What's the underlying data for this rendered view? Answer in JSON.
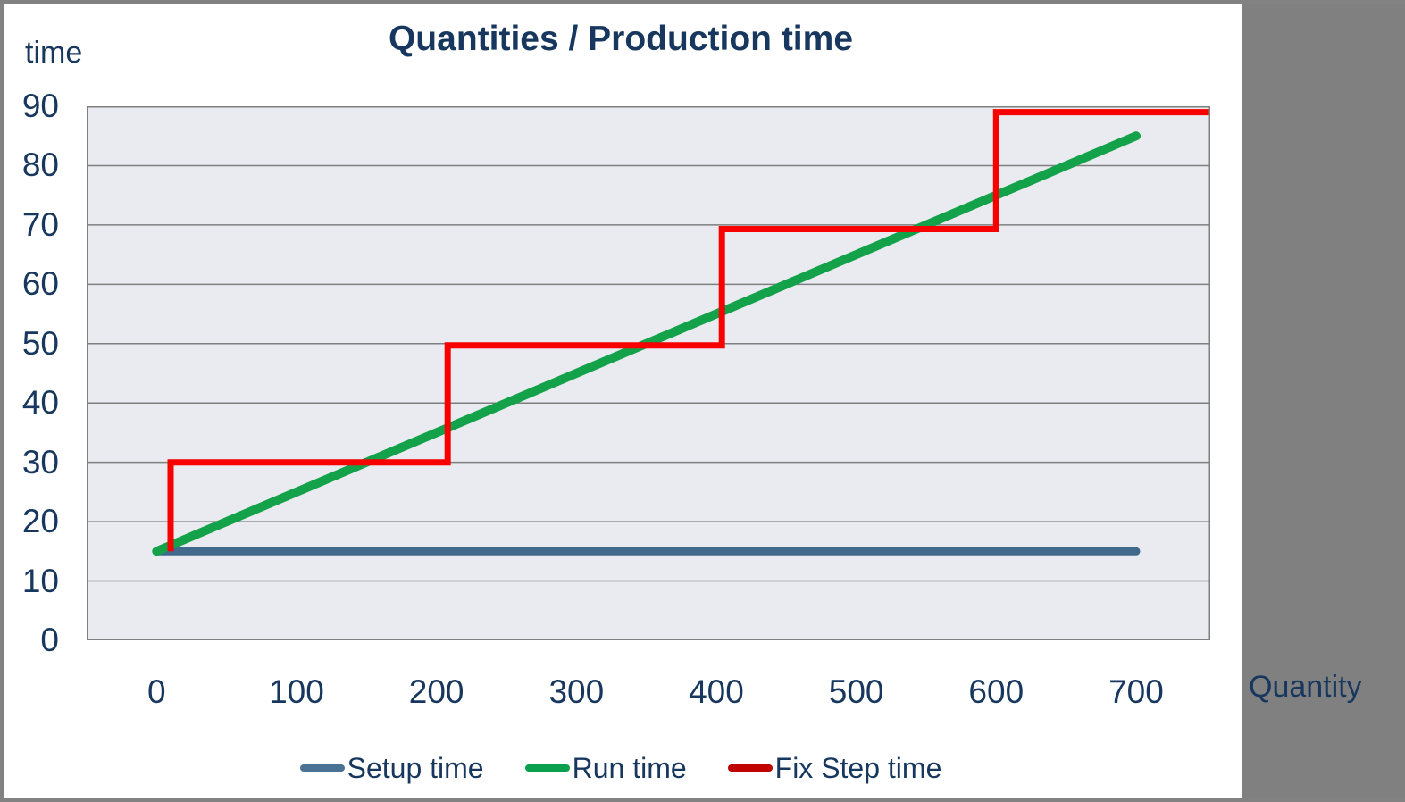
{
  "title": "Quantities / Production time",
  "y_axis_title": "time",
  "x_axis_title": "Quantity",
  "colors": {
    "text_navy": "#17375E",
    "plot_background": "#E9EBF1",
    "gridline": "#7F7F7F",
    "plot_border": "#7F7F7F",
    "frame_gray": "#808080",
    "setup_line": "#41698C",
    "run_line": "#13A24A",
    "fix_step_line": "#F80000"
  },
  "legend": [
    {
      "label": "Setup time",
      "marker_color": "#4A7294"
    },
    {
      "label": "Run time",
      "marker_color": "#0AA04C"
    },
    {
      "label": "Fix Step time",
      "marker_color": "#C00000"
    }
  ],
  "chart_data": {
    "type": "line",
    "title": "Quantities / Production time",
    "xlabel": "Quantity",
    "ylabel": "time",
    "xlim": [
      -50,
      753
    ],
    "ylim": [
      0,
      90
    ],
    "x_ticks": [
      0,
      100,
      200,
      300,
      400,
      500,
      600,
      700
    ],
    "y_ticks": [
      0,
      10,
      20,
      30,
      40,
      50,
      60,
      70,
      80,
      90
    ],
    "grid": "horizontal",
    "legend_position": "bottom",
    "series": [
      {
        "name": "Setup time",
        "color": "#41698C",
        "points": [
          [
            0,
            15
          ],
          [
            700,
            15
          ]
        ]
      },
      {
        "name": "Run time",
        "color": "#13A24A",
        "points": [
          [
            0,
            15
          ],
          [
            700,
            85
          ]
        ]
      },
      {
        "name": "Fix Step time",
        "color": "#F80000",
        "points": [
          [
            10,
            15
          ],
          [
            10,
            30
          ],
          [
            208,
            30
          ],
          [
            208,
            49.7
          ],
          [
            404,
            49.7
          ],
          [
            404,
            69.3
          ],
          [
            600,
            69.3
          ],
          [
            600,
            89
          ],
          [
            753,
            89
          ]
        ]
      }
    ]
  }
}
